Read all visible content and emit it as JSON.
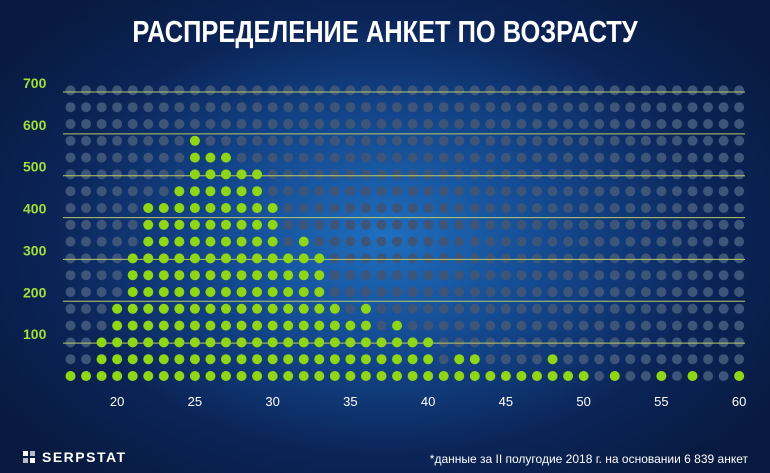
{
  "chart_data": {
    "type": "scatter",
    "title": "РАСПРЕДЕЛЕНИЕ АНКЕТ ПО ВОЗРАСТУ",
    "xlabel": "",
    "ylabel": "",
    "x_ticks": [
      "20",
      "25",
      "30",
      "35",
      "40",
      "45",
      "50",
      "55",
      "60"
    ],
    "y_ticks": [
      "100",
      "200",
      "300",
      "400",
      "500",
      "600",
      "700"
    ],
    "xlim": [
      17,
      60
    ],
    "ylim": [
      0,
      700
    ],
    "grid": true,
    "legend": "none",
    "series": [
      {
        "x": [
          17,
          18,
          19,
          20,
          21,
          22,
          23,
          24,
          25,
          26,
          27,
          28,
          29,
          30,
          31,
          32,
          33,
          34,
          35,
          36,
          37,
          38,
          39,
          40,
          41,
          42,
          43,
          44,
          45,
          46,
          47,
          48,
          49,
          50,
          52,
          55,
          57,
          60
        ],
        "values": [
          1,
          1,
          3,
          5,
          8,
          11,
          11,
          12,
          15,
          14,
          14,
          13,
          13,
          11,
          8,
          9,
          8,
          5,
          4,
          5,
          3,
          4,
          3,
          3,
          1,
          2,
          2,
          1,
          1,
          1,
          1,
          2,
          1,
          1,
          1,
          1,
          1,
          1
        ]
      }
    ],
    "colors": {
      "dot": "#8fd614",
      "empty_dot": "#3c5579",
      "gridline": "#b8c96a",
      "tick_label": "#9fe03a"
    }
  },
  "footnote": "*данные за II полугодие 2018 г. на основании 6 839 анкет",
  "brand": {
    "name": "SERPSTAT",
    "icon": "serpstat-logo-icon"
  }
}
